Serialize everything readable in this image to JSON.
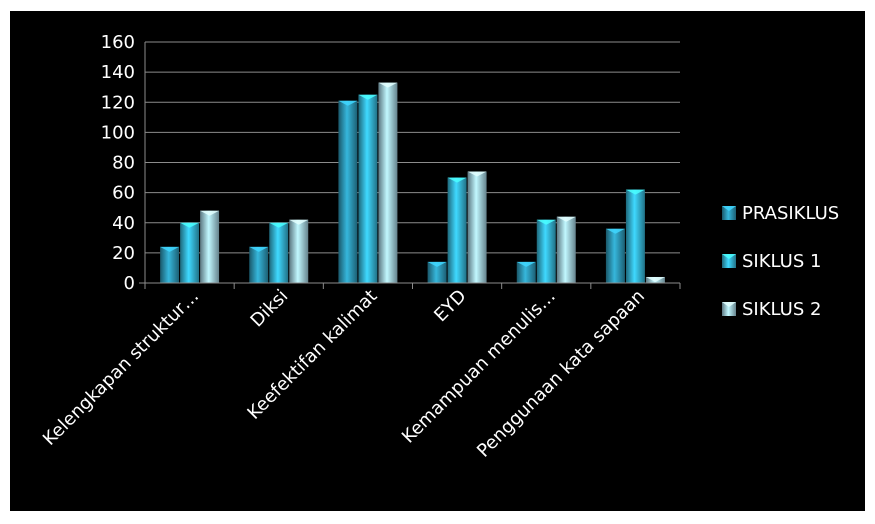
{
  "chart_data": {
    "type": "bar",
    "categories": [
      "Kelengkapan struktur…",
      "Diksi",
      "Keefektifan kalimat",
      "EYD",
      "Kemampuan menulis…",
      "Penggunaan kata sapaan"
    ],
    "series": [
      {
        "name": "PRASIKLUS",
        "values": [
          24,
          24,
          121,
          14,
          14,
          36
        ],
        "color": "#2f9fbf"
      },
      {
        "name": "SIKLUS 1",
        "values": [
          40,
          40,
          125,
          70,
          42,
          62
        ],
        "color": "#37bde0"
      },
      {
        "name": "SIKLUS 2",
        "values": [
          48,
          42,
          133,
          74,
          44,
          4
        ],
        "color": "#a8d8ea"
      }
    ],
    "ylim": [
      0,
      160
    ],
    "yticks": [
      0,
      20,
      40,
      60,
      80,
      100,
      120,
      140,
      160
    ],
    "grid": true,
    "legend_position": "right",
    "background": "#000000",
    "axis_color": "#8c8c8c",
    "text_color": "#ffffff"
  }
}
